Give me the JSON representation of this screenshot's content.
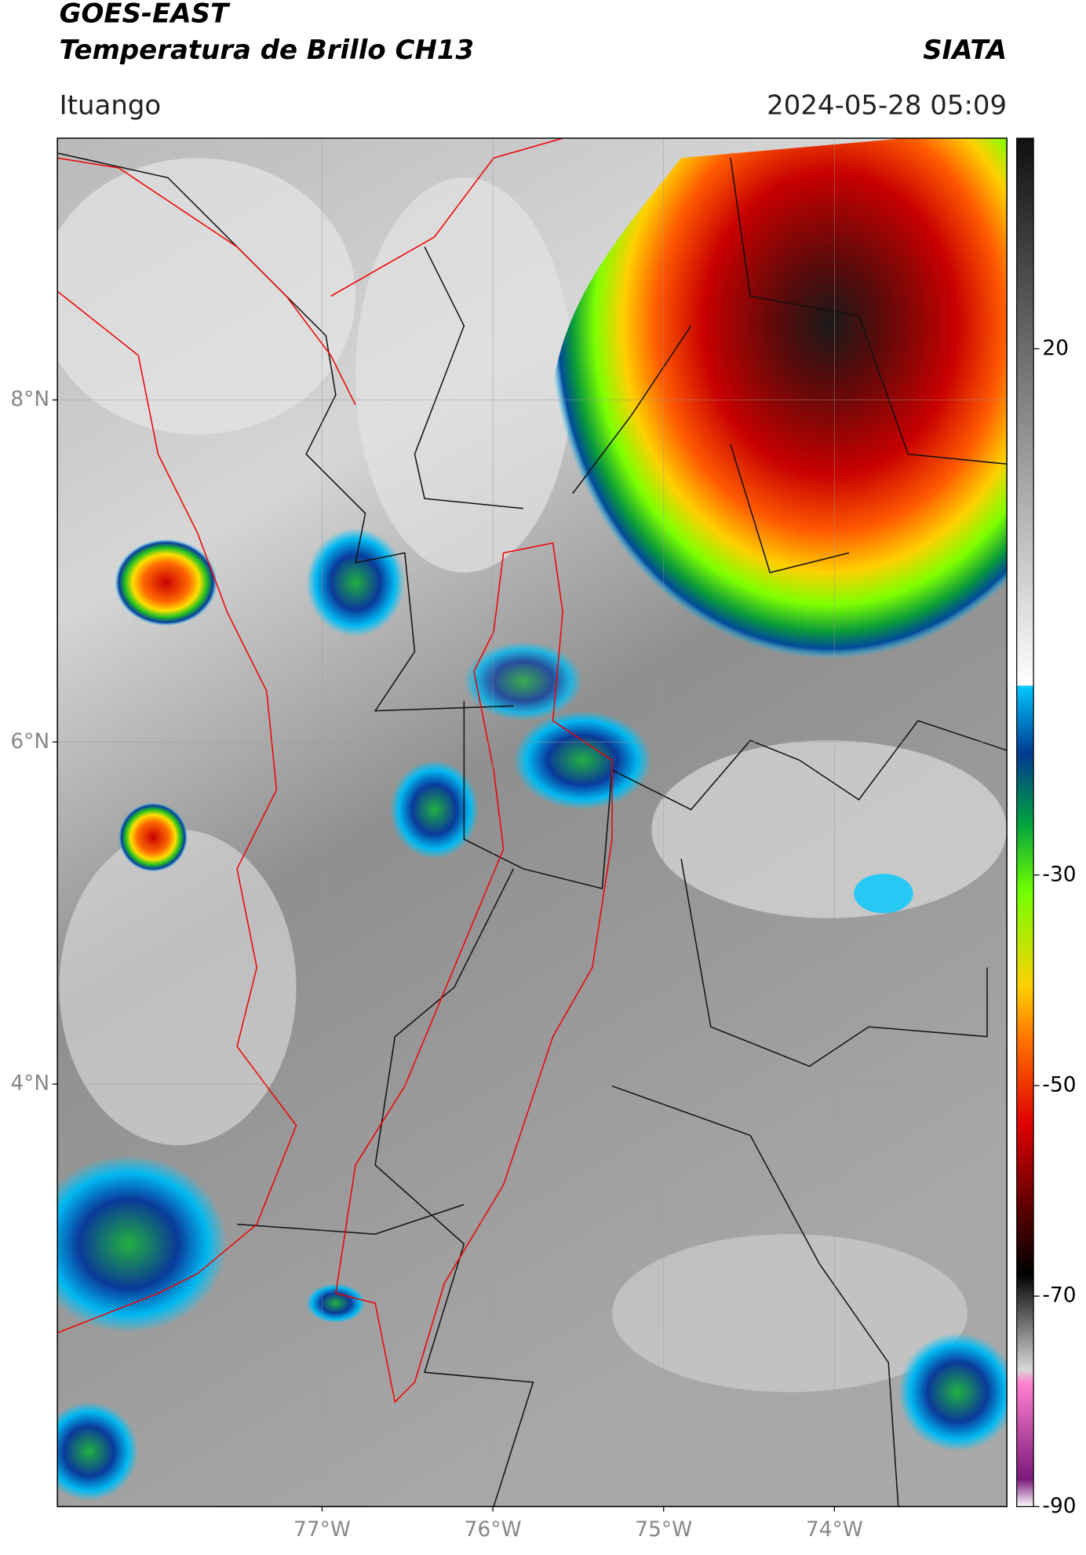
{
  "header": {
    "title": "GOES-EAST",
    "subtitle": "Temperatura de Brillo CH13",
    "brand": "SIATA",
    "location": "Ituango",
    "datetime": "2024-05-28 05:09"
  },
  "map": {
    "xlim": [
      -78.55,
      -72.99
    ],
    "ylim": [
      1.53,
      9.53
    ],
    "xticks": [
      {
        "value": -77,
        "label": "77°W"
      },
      {
        "value": -76,
        "label": "76°W"
      },
      {
        "value": -75,
        "label": "75°W"
      },
      {
        "value": -74,
        "label": "74°W"
      }
    ],
    "yticks": [
      {
        "value": 8,
        "label": "8°N"
      },
      {
        "value": 6,
        "label": "6°N"
      },
      {
        "value": 4,
        "label": "4°N"
      }
    ],
    "grid": true
  },
  "colorbar": {
    "lim": [
      -90,
      40
    ],
    "ticks": [
      20,
      -30,
      -50,
      -70,
      -90
    ]
  }
}
